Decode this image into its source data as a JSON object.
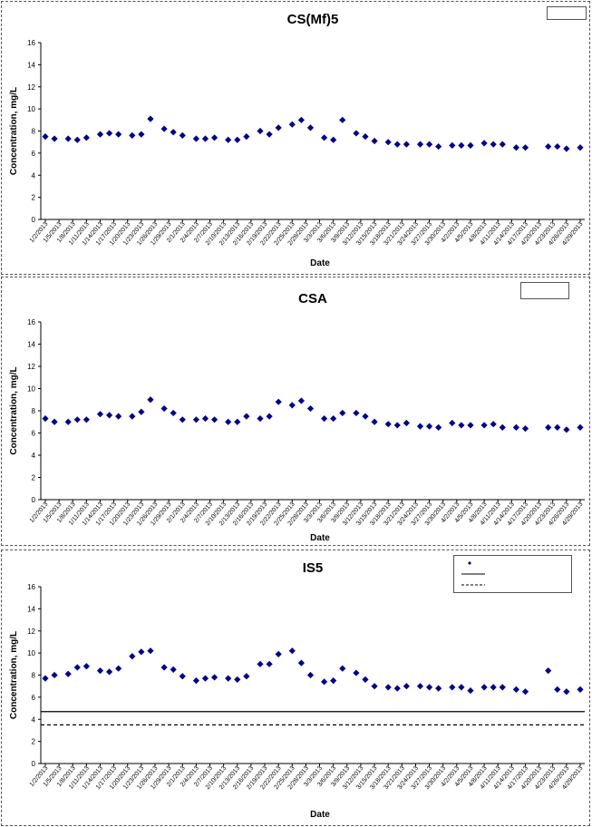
{
  "chart_data": [
    {
      "type": "scatter",
      "title": "CS(Mf)5",
      "xlabel": "Date",
      "ylabel": "Concentration, mg/L",
      "ylim": [
        0,
        16
      ],
      "yticks": [
        0,
        2,
        4,
        6,
        8,
        10,
        12,
        14,
        16
      ],
      "x_tick_labels": [
        "1/2/2013",
        "1/5/2013",
        "1/8/2013",
        "1/11/2013",
        "1/14/2013",
        "1/17/2013",
        "1/20/2013",
        "1/23/2013",
        "1/26/2013",
        "1/29/2013",
        "2/1/2013",
        "2/4/2013",
        "2/7/2013",
        "2/10/2013",
        "2/13/2013",
        "2/16/2013",
        "2/19/2013",
        "2/22/2013",
        "2/25/2013",
        "2/28/2013",
        "3/3/2013",
        "3/6/2013",
        "3/9/2013",
        "3/12/2013",
        "3/15/2013",
        "3/18/2013",
        "3/21/2013",
        "3/24/2013",
        "3/27/2013",
        "3/30/2013",
        "4/2/2013",
        "4/5/2013",
        "4/8/2013",
        "4/11/2013",
        "4/14/2013",
        "4/17/2013",
        "4/20/2013",
        "4/23/2013",
        "4/26/2013",
        "4/29/2013"
      ],
      "marker_color": "#00008B",
      "legend_position": "top-right",
      "series": [
        {
          "x": [
            "1/2/2013",
            "1/4/2013",
            "1/7/2013",
            "1/9/2013",
            "1/11/2013",
            "1/14/2013",
            "1/16/2013",
            "1/18/2013",
            "1/21/2013",
            "1/23/2013",
            "1/25/2013",
            "1/28/2013",
            "1/30/2013",
            "2/1/2013",
            "2/4/2013",
            "2/6/2013",
            "2/8/2013",
            "2/11/2013",
            "2/13/2013",
            "2/15/2013",
            "2/18/2013",
            "2/20/2013",
            "2/22/2013",
            "2/25/2013",
            "2/27/2013",
            "3/1/2013",
            "3/4/2013",
            "3/6/2013",
            "3/8/2013",
            "3/11/2013",
            "3/13/2013",
            "3/15/2013",
            "3/18/2013",
            "3/20/2013",
            "3/22/2013",
            "3/25/2013",
            "3/27/2013",
            "3/29/2013",
            "4/1/2013",
            "4/3/2013",
            "4/5/2013",
            "4/8/2013",
            "4/10/2013",
            "4/12/2013",
            "4/15/2013",
            "4/17/2013",
            "4/22/2013",
            "4/24/2013",
            "4/26/2013",
            "4/29/2013"
          ],
          "y": [
            7.5,
            7.3,
            7.3,
            7.2,
            7.4,
            7.7,
            7.8,
            7.7,
            7.6,
            7.7,
            9.1,
            8.2,
            7.9,
            7.6,
            7.3,
            7.3,
            7.4,
            7.2,
            7.2,
            7.5,
            8.0,
            7.7,
            8.3,
            8.6,
            9.0,
            8.3,
            7.4,
            7.2,
            9.0,
            7.8,
            7.5,
            7.1,
            7.0,
            6.8,
            6.8,
            6.8,
            6.8,
            6.6,
            6.7,
            6.7,
            6.7,
            6.9,
            6.8,
            6.8,
            6.5,
            6.5,
            6.6,
            6.6,
            6.4,
            6.5
          ]
        }
      ]
    },
    {
      "type": "scatter",
      "title": "CSA",
      "xlabel": "Date",
      "ylabel": "Concentration, mg/L",
      "ylim": [
        0,
        16
      ],
      "yticks": [
        0,
        2,
        4,
        6,
        8,
        10,
        12,
        14,
        16
      ],
      "x_tick_labels": [
        "1/2/2013",
        "1/5/2013",
        "1/8/2013",
        "1/11/2013",
        "1/14/2013",
        "1/17/2013",
        "1/20/2013",
        "1/23/2013",
        "1/26/2013",
        "1/29/2013",
        "2/1/2013",
        "2/4/2013",
        "2/7/2013",
        "2/10/2013",
        "2/13/2013",
        "2/16/2013",
        "2/19/2013",
        "2/22/2013",
        "2/25/2013",
        "2/28/2013",
        "3/3/2013",
        "3/6/2013",
        "3/9/2013",
        "3/12/2013",
        "3/15/2013",
        "3/18/2013",
        "3/21/2013",
        "3/24/2013",
        "3/27/2013",
        "3/30/2013",
        "4/2/2013",
        "4/5/2013",
        "4/8/2013",
        "4/11/2013",
        "4/14/2013",
        "4/17/2013",
        "4/20/2013",
        "4/23/2013",
        "4/26/2013",
        "4/29/2013"
      ],
      "marker_color": "#00008B",
      "legend_position": "top-right",
      "series": [
        {
          "x": [
            "1/2/2013",
            "1/4/2013",
            "1/7/2013",
            "1/9/2013",
            "1/11/2013",
            "1/14/2013",
            "1/16/2013",
            "1/18/2013",
            "1/21/2013",
            "1/23/2013",
            "1/25/2013",
            "1/28/2013",
            "1/30/2013",
            "2/1/2013",
            "2/4/2013",
            "2/6/2013",
            "2/8/2013",
            "2/11/2013",
            "2/13/2013",
            "2/15/2013",
            "2/18/2013",
            "2/20/2013",
            "2/22/2013",
            "2/25/2013",
            "2/27/2013",
            "3/1/2013",
            "3/4/2013",
            "3/6/2013",
            "3/8/2013",
            "3/11/2013",
            "3/13/2013",
            "3/15/2013",
            "3/18/2013",
            "3/20/2013",
            "3/22/2013",
            "3/25/2013",
            "3/27/2013",
            "3/29/2013",
            "4/1/2013",
            "4/3/2013",
            "4/5/2013",
            "4/8/2013",
            "4/10/2013",
            "4/12/2013",
            "4/15/2013",
            "4/17/2013",
            "4/22/2013",
            "4/24/2013",
            "4/26/2013",
            "4/29/2013"
          ],
          "y": [
            7.3,
            7.0,
            7.0,
            7.2,
            7.2,
            7.7,
            7.6,
            7.5,
            7.5,
            7.9,
            9.0,
            8.2,
            7.8,
            7.2,
            7.2,
            7.3,
            7.2,
            7.0,
            7.0,
            7.5,
            7.3,
            7.5,
            8.8,
            8.5,
            8.9,
            8.2,
            7.3,
            7.3,
            7.8,
            7.8,
            7.5,
            7.0,
            6.8,
            6.7,
            6.9,
            6.6,
            6.6,
            6.5,
            6.9,
            6.7,
            6.7,
            6.7,
            6.8,
            6.5,
            6.5,
            6.4,
            6.5,
            6.5,
            6.3,
            6.5
          ]
        }
      ]
    },
    {
      "type": "scatter",
      "title": "IS5",
      "xlabel": "Date",
      "ylabel": "Concentration, mg/L",
      "ylim": [
        0,
        16
      ],
      "yticks": [
        0,
        2,
        4,
        6,
        8,
        10,
        12,
        14,
        16
      ],
      "x_tick_labels": [
        "1/2/2013",
        "1/5/2013",
        "1/8/2013",
        "1/11/2013",
        "1/14/2013",
        "1/17/2013",
        "1/20/2013",
        "1/23/2013",
        "1/26/2013",
        "1/29/2013",
        "2/1/2013",
        "2/4/2013",
        "2/7/2013",
        "2/10/2013",
        "2/13/2013",
        "2/16/2013",
        "2/19/2013",
        "2/22/2013",
        "2/25/2013",
        "2/28/2013",
        "3/3/2013",
        "3/6/2013",
        "3/9/2013",
        "3/12/2013",
        "3/15/2013",
        "3/18/2013",
        "3/21/2013",
        "3/24/2013",
        "3/27/2013",
        "3/30/2013",
        "4/2/2013",
        "4/5/2013",
        "4/8/2013",
        "4/11/2013",
        "4/14/2013",
        "4/17/2013",
        "4/20/2013",
        "4/23/2013",
        "4/26/2013",
        "4/29/2013"
      ],
      "marker_color": "#00008B",
      "legend_position": "top-right",
      "reference_lines": [
        {
          "y": 4.7,
          "style": "solid"
        },
        {
          "y": 3.5,
          "style": "dashed"
        }
      ],
      "series": [
        {
          "x": [
            "1/2/2013",
            "1/4/2013",
            "1/7/2013",
            "1/9/2013",
            "1/11/2013",
            "1/14/2013",
            "1/16/2013",
            "1/18/2013",
            "1/21/2013",
            "1/23/2013",
            "1/25/2013",
            "1/28/2013",
            "1/30/2013",
            "2/1/2013",
            "2/4/2013",
            "2/6/2013",
            "2/8/2013",
            "2/11/2013",
            "2/13/2013",
            "2/15/2013",
            "2/18/2013",
            "2/20/2013",
            "2/22/2013",
            "2/25/2013",
            "2/27/2013",
            "3/1/2013",
            "3/4/2013",
            "3/6/2013",
            "3/8/2013",
            "3/11/2013",
            "3/13/2013",
            "3/15/2013",
            "3/18/2013",
            "3/20/2013",
            "3/22/2013",
            "3/25/2013",
            "3/27/2013",
            "3/29/2013",
            "4/1/2013",
            "4/3/2013",
            "4/5/2013",
            "4/8/2013",
            "4/10/2013",
            "4/12/2013",
            "4/15/2013",
            "4/17/2013",
            "4/22/2013",
            "4/24/2013",
            "4/26/2013",
            "4/29/2013"
          ],
          "y": [
            7.7,
            8.0,
            8.1,
            8.7,
            8.8,
            8.4,
            8.3,
            8.6,
            9.7,
            10.1,
            10.2,
            8.7,
            8.5,
            7.9,
            7.5,
            7.7,
            7.8,
            7.7,
            7.6,
            7.9,
            9.0,
            9.0,
            9.9,
            10.2,
            9.1,
            8.0,
            7.4,
            7.5,
            8.6,
            8.2,
            7.6,
            7.0,
            6.9,
            6.8,
            7.0,
            7.0,
            6.9,
            6.8,
            6.9,
            6.9,
            6.6,
            6.9,
            6.9,
            6.9,
            6.7,
            6.5,
            8.4,
            6.7,
            6.5,
            6.7
          ]
        }
      ]
    }
  ]
}
